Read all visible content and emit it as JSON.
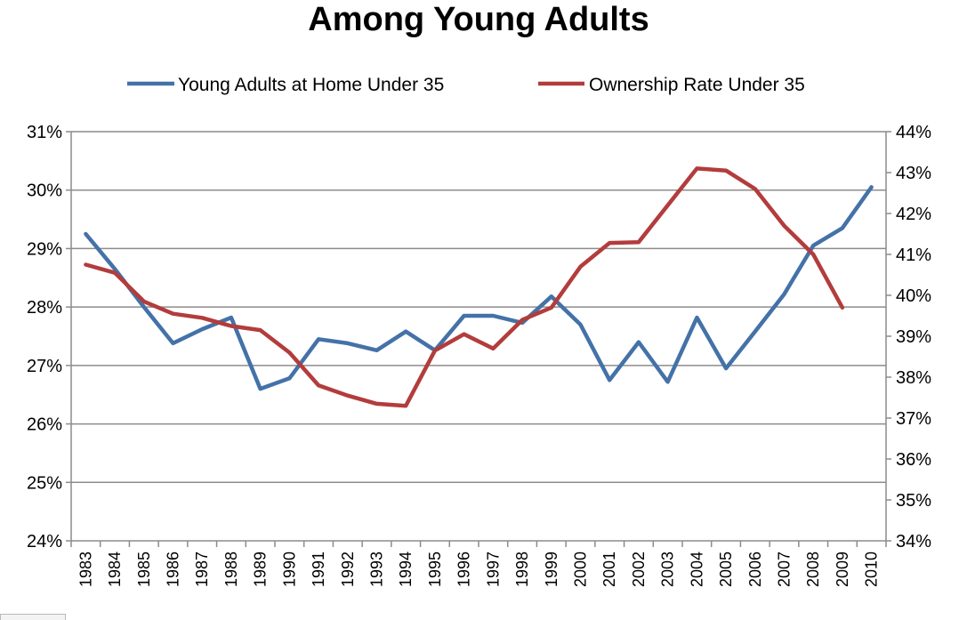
{
  "chart_data": {
    "type": "line",
    "title": "Among Young Adults",
    "categories": [
      "1983",
      "1984",
      "1985",
      "1986",
      "1987",
      "1988",
      "1989",
      "1990",
      "1991",
      "1992",
      "1993",
      "1994",
      "1995",
      "1996",
      "1997",
      "1998",
      "1999",
      "2000",
      "2001",
      "2002",
      "2003",
      "2004",
      "2005",
      "2006",
      "2007",
      "2008",
      "2009",
      "2010"
    ],
    "y_left": {
      "ylim": [
        24,
        31
      ],
      "ticks": [
        "24%",
        "25%",
        "26%",
        "27%",
        "28%",
        "29%",
        "30%",
        "31%"
      ],
      "tick_values": [
        24,
        25,
        26,
        27,
        28,
        29,
        30,
        31
      ]
    },
    "y_right": {
      "ylim": [
        34,
        44
      ],
      "ticks": [
        "34%",
        "35%",
        "36%",
        "37%",
        "38%",
        "39%",
        "40%",
        "41%",
        "42%",
        "43%",
        "44%"
      ],
      "tick_values": [
        34,
        35,
        36,
        37,
        38,
        39,
        40,
        41,
        42,
        43,
        44
      ]
    },
    "grid": true,
    "legend_position": "top",
    "series": [
      {
        "name": "Young Adults at Home Under 35",
        "axis": "left",
        "color": "#4472a8",
        "values": [
          29.25,
          28.65,
          28.0,
          27.38,
          27.62,
          27.82,
          26.6,
          26.78,
          27.45,
          27.38,
          27.26,
          27.58,
          27.26,
          27.85,
          27.85,
          27.73,
          28.18,
          27.7,
          26.75,
          27.4,
          26.72,
          27.82,
          26.95,
          27.58,
          28.22,
          29.05,
          29.35,
          30.05
        ]
      },
      {
        "name": "Ownership Rate Under 35",
        "axis": "right",
        "color": "#b33c3c",
        "values": [
          40.75,
          40.55,
          39.85,
          39.55,
          39.45,
          39.25,
          39.15,
          38.6,
          37.8,
          37.55,
          37.35,
          37.3,
          38.65,
          39.05,
          38.7,
          39.4,
          39.7,
          40.7,
          41.28,
          41.3,
          42.2,
          43.1,
          43.05,
          42.6,
          41.7,
          41.0,
          39.7,
          null
        ]
      }
    ]
  }
}
